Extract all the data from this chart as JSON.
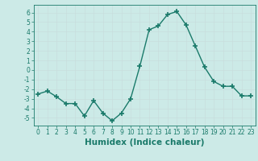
{
  "x": [
    0,
    1,
    2,
    3,
    4,
    5,
    6,
    7,
    8,
    9,
    10,
    11,
    12,
    13,
    14,
    15,
    16,
    17,
    18,
    19,
    20,
    21,
    22,
    23
  ],
  "y": [
    -2.5,
    -2.2,
    -2.8,
    -3.5,
    -3.5,
    -4.8,
    -3.2,
    -4.5,
    -5.3,
    -4.5,
    -3.0,
    0.4,
    4.2,
    4.6,
    5.8,
    6.1,
    4.7,
    2.5,
    0.3,
    -1.2,
    -1.7,
    -1.7,
    -2.7,
    -2.7
  ],
  "line_color": "#1a7a6a",
  "marker": "+",
  "marker_size": 4,
  "marker_lw": 1.2,
  "bg_color": "#cceae7",
  "grid_color_major": "#b8d8d5",
  "grid_color_minor": "#d4ecea",
  "xlabel": "Humidex (Indice chaleur)",
  "ylim": [
    -5.8,
    6.8
  ],
  "xlim": [
    -0.5,
    23.5
  ],
  "yticks": [
    -5,
    -4,
    -3,
    -2,
    -1,
    0,
    1,
    2,
    3,
    4,
    5,
    6
  ],
  "xticks": [
    0,
    1,
    2,
    3,
    4,
    5,
    6,
    7,
    8,
    9,
    10,
    11,
    12,
    13,
    14,
    15,
    16,
    17,
    18,
    19,
    20,
    21,
    22,
    23
  ],
  "tick_label_fontsize": 5.5,
  "xlabel_fontsize": 7.5,
  "line_width": 1.0
}
